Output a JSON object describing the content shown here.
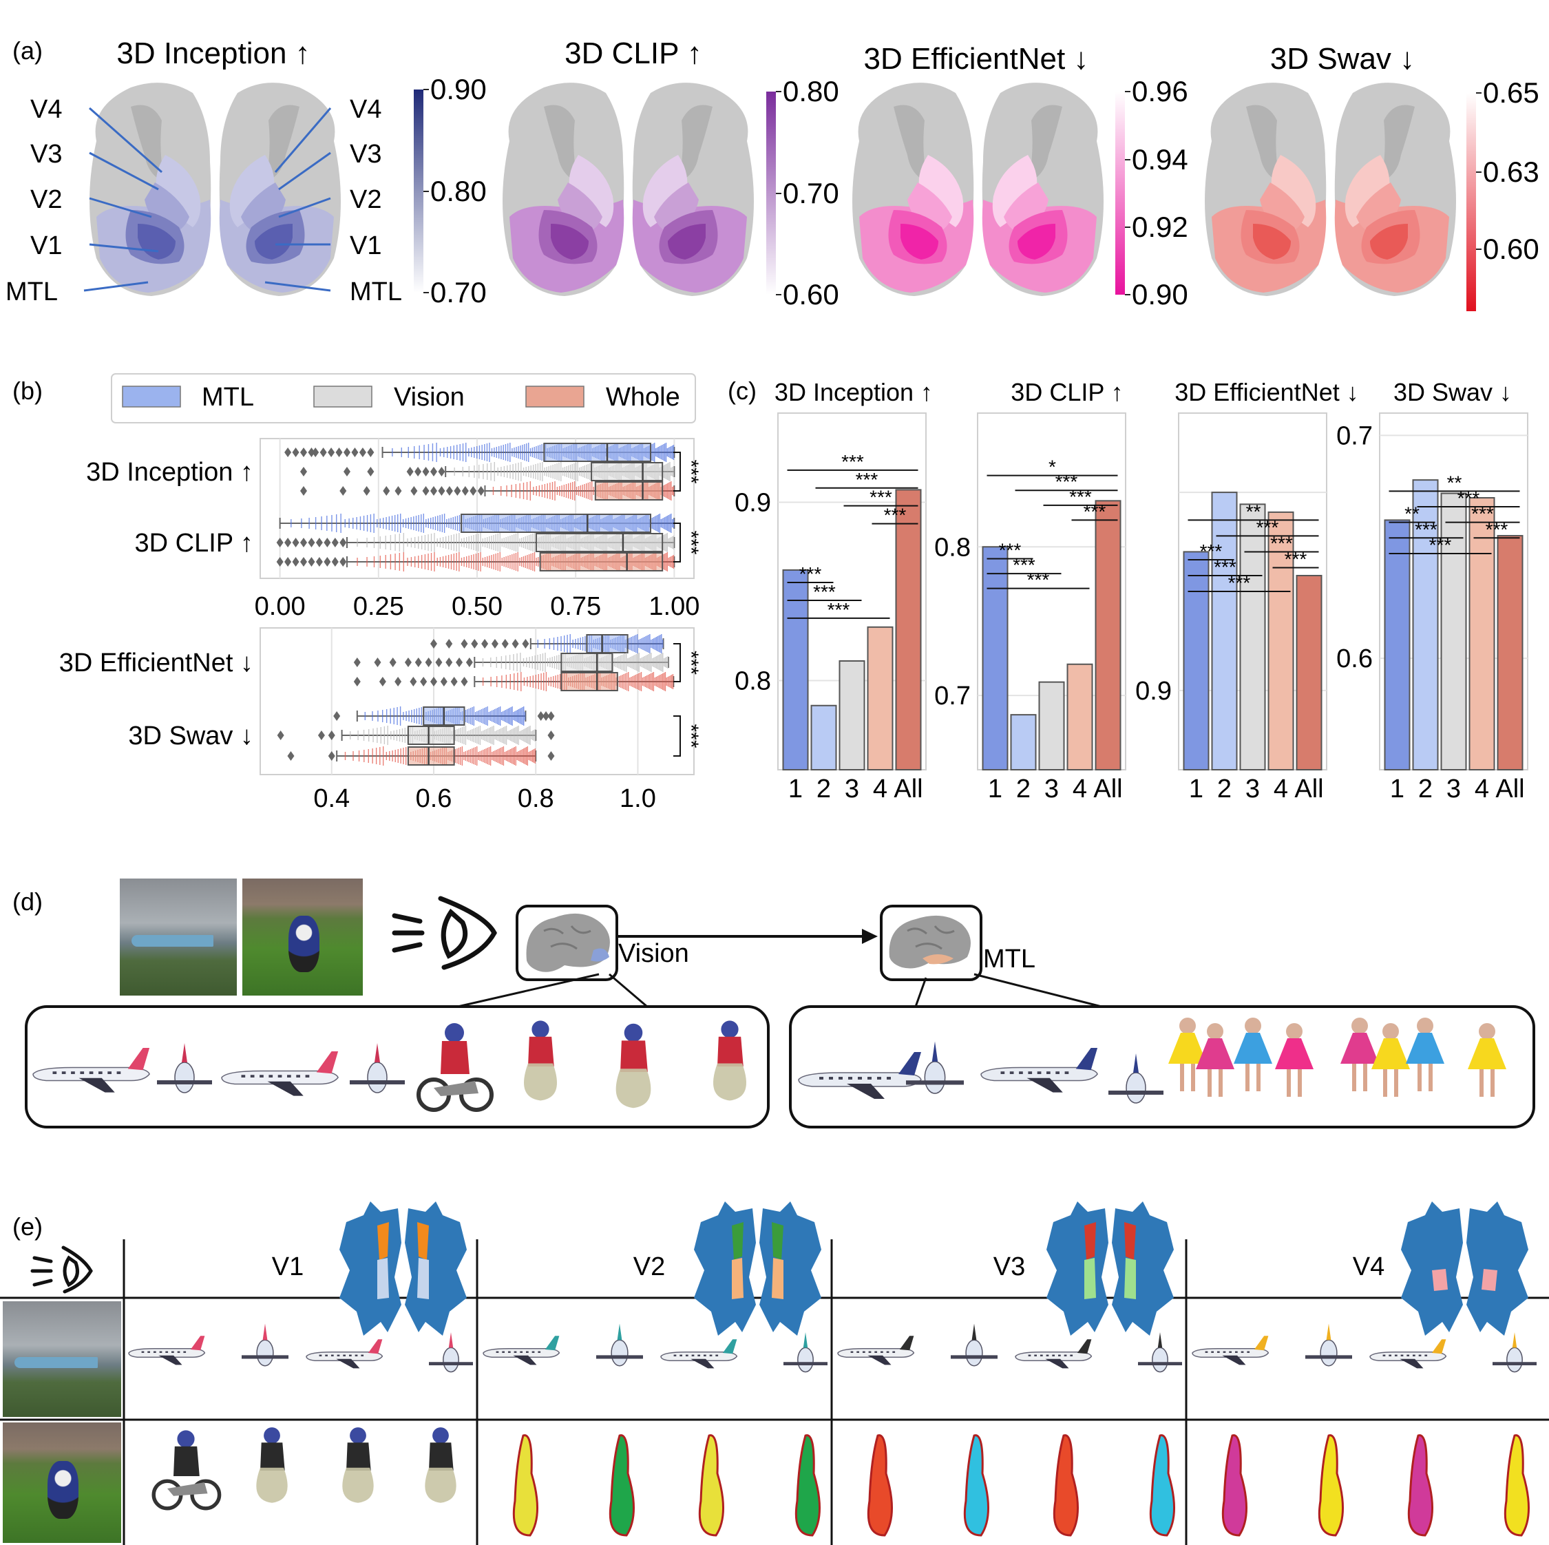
{
  "panel_labels": {
    "a": "(a)",
    "b": "(b)",
    "c": "(c)",
    "d": "(d)",
    "e": "(e)"
  },
  "panel_a": {
    "titles": [
      "3D Inception ↑",
      "3D CLIP ↑",
      "3D EfficientNet ↓",
      "3D Swav ↓"
    ],
    "roi_labels": [
      "V4",
      "V3",
      "V2",
      "V1",
      "MTL"
    ],
    "colorbars": [
      {
        "ticks": [
          "0.90",
          "0.80",
          "0.70"
        ],
        "top": "#1f2a78",
        "bottom": "#ffffff"
      },
      {
        "ticks": [
          "0.80",
          "0.70",
          "0.60"
        ],
        "top": "#7a2d9c",
        "bottom": "#ffffff"
      },
      {
        "ticks": [
          "0.96",
          "0.94",
          "0.92",
          "0.90"
        ],
        "top": "#ffffff",
        "bottom": "#e8129d"
      },
      {
        "ticks": [
          "0.65",
          "0.63",
          "0.60"
        ],
        "top": "#ffffff",
        "bottom": "#e0101e"
      }
    ],
    "region_colors": [
      [
        "#5a5fb0",
        "#7c80c0",
        "#a5a7d6",
        "#c7c8e6",
        "#b7b9dd"
      ],
      [
        "#8b3fa3",
        "#a565b8",
        "#c9a0d6",
        "#e4cdeb",
        "#c78fd3"
      ],
      [
        "#f024a8",
        "#f25ab9",
        "#f7a2d7",
        "#fbd1ec",
        "#f38dcc"
      ],
      [
        "#e95a57",
        "#ef8482",
        "#f3a3a0",
        "#f8c9c6",
        "#f19c98"
      ]
    ]
  },
  "chart_data": [
    {
      "type": "box",
      "panel": "b-top",
      "legend": [
        "MTL",
        "Vision",
        "Whole"
      ],
      "colors": {
        "MTL": "#4b6fe0",
        "Vision": "#b9b9b9",
        "Whole": "#e4584a"
      },
      "legend_colors": {
        "MTL": "#9bb3ee",
        "Vision": "#dcdcdc",
        "Whole": "#e9a592"
      },
      "categories": [
        "3D Inception ↑",
        "3D CLIP ↑"
      ],
      "xticks": [
        "0.00",
        "0.25",
        "0.50",
        "0.75",
        "1.00"
      ],
      "xlim": [
        -0.05,
        1.05
      ],
      "boxes": [
        {
          "cat": 0,
          "series": "MTL",
          "q1": 0.67,
          "med": 0.83,
          "q3": 0.94,
          "wlo": 0.26,
          "whi": 1.0
        },
        {
          "cat": 0,
          "series": "Vision",
          "q1": 0.79,
          "med": 0.92,
          "q3": 0.97,
          "wlo": 0.42,
          "whi": 1.0
        },
        {
          "cat": 0,
          "series": "Whole",
          "q1": 0.8,
          "med": 0.92,
          "q3": 0.97,
          "wlo": 0.52,
          "whi": 1.0
        },
        {
          "cat": 1,
          "series": "MTL",
          "q1": 0.46,
          "med": 0.78,
          "q3": 0.94,
          "wlo": 0.0,
          "whi": 1.0
        },
        {
          "cat": 1,
          "series": "Vision",
          "q1": 0.65,
          "med": 0.87,
          "q3": 0.97,
          "wlo": 0.17,
          "whi": 1.0
        },
        {
          "cat": 1,
          "series": "Whole",
          "q1": 0.66,
          "med": 0.88,
          "q3": 0.97,
          "wlo": 0.17,
          "whi": 1.0
        }
      ],
      "outliers": [
        [
          0.02,
          0.04,
          0.06,
          0.08,
          0.09,
          0.11,
          0.13,
          0.15,
          0.17,
          0.19,
          0.21,
          0.23
        ],
        [
          0.06,
          0.17,
          0.23,
          0.33,
          0.35,
          0.37,
          0.39,
          0.41
        ],
        [
          0.06,
          0.16,
          0.22,
          0.27,
          0.3,
          0.34,
          0.37,
          0.39,
          0.41,
          0.43,
          0.45,
          0.47,
          0.49,
          0.51
        ],
        [],
        [
          0.0,
          0.02,
          0.04,
          0.06,
          0.08,
          0.1,
          0.12,
          0.14,
          0.16
        ],
        [
          0.0,
          0.02,
          0.04,
          0.06,
          0.08,
          0.1,
          0.12,
          0.14,
          0.16
        ]
      ],
      "significance": [
        "***",
        "***"
      ]
    },
    {
      "type": "box",
      "panel": "b-bottom",
      "categories": [
        "3D EfficientNet ↓",
        "3D Swav ↓"
      ],
      "xticks": [
        "0.4",
        "0.6",
        "0.8",
        "1.0"
      ],
      "xlim": [
        0.26,
        1.11
      ],
      "boxes": [
        {
          "cat": 0,
          "series": "MTL",
          "q1": 0.9,
          "med": 0.93,
          "q3": 0.98,
          "wlo": 0.79,
          "whi": 1.05
        },
        {
          "cat": 0,
          "series": "Vision",
          "q1": 0.85,
          "med": 0.92,
          "q3": 0.95,
          "wlo": 0.68,
          "whi": 1.06
        },
        {
          "cat": 0,
          "series": "Whole",
          "q1": 0.85,
          "med": 0.92,
          "q3": 0.96,
          "wlo": 0.68,
          "whi": 1.07
        },
        {
          "cat": 1,
          "series": "MTL",
          "q1": 0.58,
          "med": 0.62,
          "q3": 0.66,
          "wlo": 0.45,
          "whi": 0.78
        },
        {
          "cat": 1,
          "series": "Vision",
          "q1": 0.55,
          "med": 0.59,
          "q3": 0.64,
          "wlo": 0.42,
          "whi": 0.8
        },
        {
          "cat": 1,
          "series": "Whole",
          "q1": 0.55,
          "med": 0.59,
          "q3": 0.64,
          "wlo": 0.41,
          "whi": 0.8
        }
      ],
      "outliers": [
        [
          0.6,
          0.63,
          0.66,
          0.68,
          0.7,
          0.72,
          0.74,
          0.76,
          0.78
        ],
        [
          0.45,
          0.49,
          0.52,
          0.55,
          0.57,
          0.59,
          0.61,
          0.63,
          0.65,
          0.67
        ],
        [
          0.45,
          0.5,
          0.53,
          0.56,
          0.58,
          0.6,
          0.62,
          0.64,
          0.66
        ],
        [
          0.41,
          0.81,
          0.82,
          0.83
        ],
        [
          0.3,
          0.38,
          0.4,
          0.83
        ],
        [
          0.32,
          0.4,
          0.83
        ]
      ],
      "significance": [
        "***",
        "***"
      ]
    },
    {
      "type": "bar",
      "panel": "c",
      "categories": [
        "1",
        "2",
        "3",
        "4",
        "All"
      ],
      "bar_colors": [
        "#7f97e2",
        "#b9cbf4",
        "#dddddd",
        "#f0bca9",
        "#d77c6c"
      ],
      "subplots": [
        {
          "title": "3D Inception ↑",
          "ylim": [
            0.75,
            0.95
          ],
          "yticks": [
            0.8,
            0.9
          ],
          "ytick_labels": [
            "0.8",
            "0.9"
          ],
          "values": [
            0.862,
            0.786,
            0.811,
            0.83,
            0.907
          ],
          "sig": [
            {
              "a": 0,
              "b": 4,
              "y": 0.918,
              "t": "***"
            },
            {
              "a": 1,
              "b": 4,
              "y": 0.908,
              "t": "***"
            },
            {
              "a": 2,
              "b": 4,
              "y": 0.898,
              "t": "***"
            },
            {
              "a": 3,
              "b": 4,
              "y": 0.888,
              "t": "***"
            },
            {
              "a": 0,
              "b": 1,
              "y": 0.855,
              "t": "***"
            },
            {
              "a": 0,
              "b": 2,
              "y": 0.845,
              "t": "***"
            },
            {
              "a": 0,
              "b": 3,
              "y": 0.835,
              "t": "***"
            }
          ]
        },
        {
          "title": "3D CLIP ↑",
          "ylim": [
            0.65,
            0.89
          ],
          "yticks": [
            0.7,
            0.8
          ],
          "ytick_labels": [
            "0.7",
            "0.8"
          ],
          "values": [
            0.8,
            0.687,
            0.709,
            0.721,
            0.831
          ],
          "sig": [
            {
              "a": 0,
              "b": 4,
              "y": 0.848,
              "t": "*"
            },
            {
              "a": 1,
              "b": 4,
              "y": 0.838,
              "t": "***"
            },
            {
              "a": 2,
              "b": 4,
              "y": 0.828,
              "t": "***"
            },
            {
              "a": 3,
              "b": 4,
              "y": 0.818,
              "t": "***"
            },
            {
              "a": 0,
              "b": 1,
              "y": 0.792,
              "t": "***"
            },
            {
              "a": 0,
              "b": 2,
              "y": 0.782,
              "t": "***"
            },
            {
              "a": 0,
              "b": 3,
              "y": 0.772,
              "t": "***"
            }
          ]
        },
        {
          "title": "3D EfficientNet ↓",
          "ylim": [
            0.88,
            0.97
          ],
          "yticks": [
            0.9,
            0.95
          ],
          "ytick_labels": [
            "0.9",
            ""
          ],
          "values": [
            0.935,
            0.95,
            0.947,
            0.945,
            0.929
          ],
          "sig": [
            {
              "a": 0,
              "b": 4,
              "y": 0.943,
              "t": "**"
            },
            {
              "a": 1,
              "b": 4,
              "y": 0.939,
              "t": "***"
            },
            {
              "a": 2,
              "b": 4,
              "y": 0.935,
              "t": "***"
            },
            {
              "a": 3,
              "b": 4,
              "y": 0.931,
              "t": "***"
            },
            {
              "a": 0,
              "b": 1,
              "y": 0.933,
              "t": "***"
            },
            {
              "a": 0,
              "b": 2,
              "y": 0.929,
              "t": "***"
            },
            {
              "a": 0,
              "b": 3,
              "y": 0.925,
              "t": "***"
            }
          ]
        },
        {
          "title": "3D Swav ↓",
          "ylim": [
            0.55,
            0.71
          ],
          "yticks": [
            0.6,
            0.7
          ],
          "ytick_labels": [
            "0.6",
            "0.7"
          ],
          "values": [
            0.662,
            0.68,
            0.674,
            0.672,
            0.655
          ],
          "sig": [
            {
              "a": 0,
              "b": 4,
              "y": 0.675,
              "t": "**"
            },
            {
              "a": 1,
              "b": 4,
              "y": 0.668,
              "t": "***"
            },
            {
              "a": 2,
              "b": 4,
              "y": 0.661,
              "t": "***"
            },
            {
              "a": 3,
              "b": 4,
              "y": 0.654,
              "t": "***"
            },
            {
              "a": 0,
              "b": 1,
              "y": 0.661,
              "t": "**"
            },
            {
              "a": 0,
              "b": 2,
              "y": 0.654,
              "t": "***"
            },
            {
              "a": 0,
              "b": 3,
              "y": 0.647,
              "t": "***"
            }
          ]
        }
      ]
    }
  ],
  "panel_d": {
    "vision_label": "Vision",
    "mtl_label": "MTL"
  },
  "panel_e": {
    "columns": [
      "V1",
      "V2",
      "V3",
      "V4"
    ],
    "flatmap_colors": {
      "base": "#2f78b7",
      "v1a": "#f28a1c",
      "v1b": "#c5d5ec",
      "v2a": "#3b9c3b",
      "v2b": "#f5b27a",
      "v3a": "#d63a2b",
      "v3b": "#9fe08e",
      "v4": "#f3a3a6"
    }
  }
}
